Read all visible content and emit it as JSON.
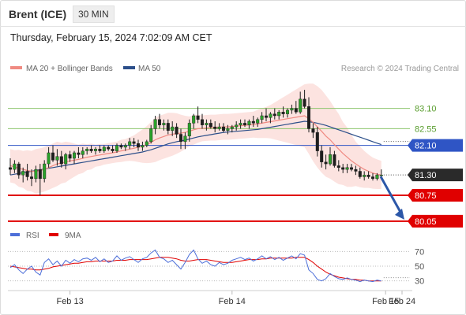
{
  "header": {
    "instrument": "Brent (ICE)",
    "timeframe": "30 MIN",
    "timestamp": "Thursday, February 15, 2024 7:02:09 AM CET"
  },
  "chart_data": {
    "type": "candlestick",
    "legend": [
      {
        "name": "MA 20 + Bollinger Bands",
        "color": "#f08a82"
      },
      {
        "name": "MA 50",
        "color": "#2c4f8a"
      }
    ],
    "credit": "Research © 2024 Trading Central",
    "price_axis": {
      "min": 79.75,
      "max": 83.9
    },
    "levels": [
      {
        "value": 83.1,
        "label": "83.10",
        "kind": "resistance",
        "color": "#8cc56b",
        "label_color": "#5a9e2f"
      },
      {
        "value": 82.55,
        "label": "82.55",
        "kind": "resistance",
        "color": "#8cc56b",
        "label_color": "#5a9e2f"
      },
      {
        "value": 82.1,
        "label": "82.10",
        "kind": "pivot",
        "color": "#2f55c5",
        "label_color": "#ffffff"
      },
      {
        "value": 81.3,
        "label": "81.30",
        "kind": "last",
        "color": "#2a2a2a",
        "label_color": "#ffffff"
      },
      {
        "value": 80.75,
        "label": "80.75",
        "kind": "support",
        "color": "#e00000",
        "label_color": "#ffffff"
      },
      {
        "value": 80.05,
        "label": "80.05",
        "kind": "support",
        "color": "#e00000",
        "label_color": "#ffffff"
      }
    ],
    "arrow": {
      "from": 81.3,
      "to": 80.05,
      "direction": "down",
      "color": "#2c57a8"
    },
    "candles": [
      [
        81.5,
        81.75,
        81.3,
        81.45
      ],
      [
        81.45,
        81.7,
        81.35,
        81.6
      ],
      [
        81.6,
        81.65,
        81.2,
        81.3
      ],
      [
        81.3,
        81.5,
        81.1,
        81.4
      ],
      [
        81.4,
        81.6,
        81.15,
        81.25
      ],
      [
        81.25,
        81.45,
        81.0,
        81.2
      ],
      [
        81.2,
        81.55,
        81.1,
        81.45
      ],
      [
        81.45,
        81.6,
        80.75,
        81.2
      ],
      [
        81.2,
        81.7,
        81.1,
        81.6
      ],
      [
        81.6,
        82.05,
        81.5,
        81.9
      ],
      [
        81.9,
        82.1,
        81.65,
        81.7
      ],
      [
        81.7,
        82.0,
        81.55,
        81.8
      ],
      [
        81.8,
        81.95,
        81.5,
        81.6
      ],
      [
        81.6,
        81.9,
        81.45,
        81.85
      ],
      [
        81.85,
        81.95,
        81.65,
        81.75
      ],
      [
        81.75,
        81.95,
        81.6,
        81.9
      ],
      [
        81.9,
        82.05,
        81.75,
        81.85
      ],
      [
        81.85,
        82.05,
        81.75,
        81.95
      ],
      [
        81.95,
        82.05,
        81.85,
        82.0
      ],
      [
        82.0,
        82.1,
        81.9,
        81.95
      ],
      [
        81.95,
        82.05,
        81.85,
        82.0
      ],
      [
        82.0,
        82.1,
        81.9,
        81.95
      ],
      [
        81.95,
        82.1,
        81.9,
        82.05
      ],
      [
        82.05,
        82.1,
        81.95,
        82.0
      ],
      [
        82.0,
        82.1,
        81.9,
        81.95
      ],
      [
        81.95,
        82.15,
        81.9,
        82.1
      ],
      [
        82.1,
        82.15,
        82.0,
        82.05
      ],
      [
        82.05,
        82.15,
        81.95,
        82.1
      ],
      [
        82.1,
        82.3,
        82.0,
        82.2
      ],
      [
        82.2,
        82.3,
        82.05,
        82.15
      ],
      [
        82.15,
        82.25,
        81.95,
        82.05
      ],
      [
        82.05,
        82.2,
        81.95,
        82.1
      ],
      [
        82.1,
        82.25,
        82.05,
        82.2
      ],
      [
        82.2,
        82.65,
        82.15,
        82.55
      ],
      [
        82.55,
        82.9,
        82.4,
        82.8
      ],
      [
        82.8,
        82.95,
        82.55,
        82.65
      ],
      [
        82.65,
        82.8,
        82.5,
        82.7
      ],
      [
        82.7,
        82.8,
        82.4,
        82.5
      ],
      [
        82.5,
        82.75,
        82.35,
        82.6
      ],
      [
        82.6,
        82.7,
        82.3,
        82.4
      ],
      [
        82.4,
        82.55,
        82.0,
        82.2
      ],
      [
        82.2,
        82.45,
        82.0,
        82.35
      ],
      [
        82.35,
        82.8,
        82.2,
        82.7
      ],
      [
        82.7,
        82.95,
        82.55,
        82.9
      ],
      [
        82.9,
        83.15,
        82.7,
        82.8
      ],
      [
        82.8,
        82.95,
        82.55,
        82.65
      ],
      [
        82.65,
        82.8,
        82.5,
        82.7
      ],
      [
        82.7,
        82.8,
        82.55,
        82.6
      ],
      [
        82.6,
        82.75,
        82.45,
        82.55
      ],
      [
        82.55,
        82.7,
        82.5,
        82.6
      ],
      [
        82.6,
        82.7,
        82.45,
        82.5
      ],
      [
        82.5,
        82.65,
        82.4,
        82.55
      ],
      [
        82.55,
        82.65,
        82.45,
        82.6
      ],
      [
        82.6,
        82.75,
        82.5,
        82.65
      ],
      [
        82.65,
        82.8,
        82.55,
        82.7
      ],
      [
        82.7,
        82.8,
        82.6,
        82.65
      ],
      [
        82.65,
        82.8,
        82.55,
        82.75
      ],
      [
        82.75,
        82.9,
        82.6,
        82.7
      ],
      [
        82.7,
        82.85,
        82.6,
        82.8
      ],
      [
        82.8,
        83.0,
        82.7,
        82.9
      ],
      [
        82.9,
        83.1,
        82.75,
        82.85
      ],
      [
        82.85,
        83.0,
        82.7,
        82.95
      ],
      [
        82.95,
        83.1,
        82.8,
        82.9
      ],
      [
        82.9,
        83.05,
        82.8,
        83.0
      ],
      [
        83.0,
        83.15,
        82.85,
        82.95
      ],
      [
        82.95,
        83.1,
        82.85,
        83.05
      ],
      [
        83.05,
        83.2,
        82.95,
        83.1
      ],
      [
        83.1,
        83.3,
        82.95,
        83.0
      ],
      [
        83.0,
        83.55,
        82.95,
        83.35
      ],
      [
        83.35,
        83.6,
        83.1,
        83.15
      ],
      [
        83.15,
        83.4,
        82.45,
        82.55
      ],
      [
        82.55,
        82.7,
        82.3,
        82.45
      ],
      [
        82.45,
        82.6,
        81.8,
        81.95
      ],
      [
        81.95,
        82.1,
        81.5,
        81.65
      ],
      [
        81.65,
        81.85,
        81.45,
        81.6
      ],
      [
        81.6,
        82.05,
        81.55,
        81.85
      ],
      [
        81.85,
        81.95,
        81.5,
        81.55
      ],
      [
        81.55,
        81.7,
        81.4,
        81.5
      ],
      [
        81.5,
        81.6,
        81.35,
        81.45
      ],
      [
        81.45,
        81.6,
        81.35,
        81.5
      ],
      [
        81.5,
        81.6,
        81.4,
        81.45
      ],
      [
        81.45,
        81.55,
        81.3,
        81.4
      ],
      [
        81.4,
        81.5,
        81.2,
        81.25
      ],
      [
        81.25,
        81.4,
        81.15,
        81.3
      ],
      [
        81.3,
        81.4,
        81.2,
        81.25
      ],
      [
        81.25,
        81.35,
        81.15,
        81.2
      ],
      [
        81.2,
        81.35,
        81.15,
        81.3
      ],
      [
        81.3,
        81.45,
        81.25,
        81.3
      ]
    ],
    "ma20": [
      81.55,
      81.52,
      81.48,
      81.45,
      81.42,
      81.4,
      81.4,
      81.42,
      81.45,
      81.5,
      81.55,
      81.6,
      81.62,
      81.65,
      81.68,
      81.7,
      81.72,
      81.75,
      81.78,
      81.8,
      81.82,
      81.84,
      81.86,
      81.88,
      81.9,
      81.92,
      81.95,
      81.97,
      82.0,
      82.02,
      82.05,
      82.08,
      82.12,
      82.18,
      82.25,
      82.3,
      82.34,
      82.38,
      82.4,
      82.42,
      82.43,
      82.45,
      82.48,
      82.52,
      82.55,
      82.56,
      82.57,
      82.58,
      82.58,
      82.59,
      82.6,
      82.6,
      82.61,
      82.62,
      82.63,
      82.64,
      82.65,
      82.66,
      82.68,
      82.7,
      82.72,
      82.74,
      82.76,
      82.78,
      82.8,
      82.82,
      82.84,
      82.86,
      82.88,
      82.9,
      82.82,
      82.72,
      82.6,
      82.48,
      82.35,
      82.25,
      82.12,
      82.0,
      81.88,
      81.78,
      81.68,
      81.6,
      81.52,
      81.45,
      81.4,
      81.35,
      81.32,
      81.3
    ],
    "ma50": [
      81.3,
      81.32,
      81.34,
      81.36,
      81.38,
      81.4,
      81.42,
      81.44,
      81.46,
      81.48,
      81.5,
      81.52,
      81.54,
      81.56,
      81.58,
      81.6,
      81.62,
      81.64,
      81.66,
      81.68,
      81.7,
      81.72,
      81.74,
      81.76,
      81.78,
      81.8,
      81.82,
      81.84,
      81.86,
      81.88,
      81.9,
      81.92,
      81.95,
      81.98,
      82.02,
      82.06,
      82.1,
      82.14,
      82.17,
      82.2,
      82.22,
      82.24,
      82.27,
      82.3,
      82.33,
      82.35,
      82.37,
      82.39,
      82.41,
      82.43,
      82.45,
      82.46,
      82.47,
      82.48,
      82.49,
      82.5,
      82.51,
      82.52,
      82.53,
      82.55,
      82.57,
      82.59,
      82.61,
      82.63,
      82.65,
      82.67,
      82.69,
      82.71,
      82.73,
      82.75,
      82.74,
      82.72,
      82.7,
      82.67,
      82.64,
      82.6,
      82.56,
      82.52,
      82.48,
      82.44,
      82.4,
      82.36,
      82.32,
      82.28,
      82.24,
      82.2,
      82.16,
      82.12
    ],
    "bb_width": [
      0.45,
      0.45,
      0.5,
      0.5,
      0.55,
      0.55,
      0.6,
      0.6,
      0.6,
      0.6,
      0.6,
      0.6,
      0.55,
      0.55,
      0.5,
      0.45,
      0.4,
      0.4,
      0.35,
      0.35,
      0.3,
      0.3,
      0.28,
      0.28,
      0.28,
      0.28,
      0.3,
      0.3,
      0.32,
      0.35,
      0.4,
      0.45,
      0.5,
      0.55,
      0.6,
      0.6,
      0.6,
      0.6,
      0.58,
      0.55,
      0.5,
      0.45,
      0.4,
      0.4,
      0.38,
      0.35,
      0.35,
      0.35,
      0.35,
      0.35,
      0.35,
      0.35,
      0.35,
      0.35,
      0.35,
      0.35,
      0.35,
      0.35,
      0.38,
      0.4,
      0.42,
      0.45,
      0.5,
      0.55,
      0.6,
      0.65,
      0.7,
      0.75,
      0.8,
      0.85,
      0.95,
      1.05,
      1.1,
      1.12,
      1.1,
      1.05,
      1.0,
      0.95,
      0.85,
      0.8,
      0.7,
      0.6,
      0.55,
      0.5,
      0.45,
      0.42,
      0.4,
      0.38
    ],
    "x_axis": {
      "ticks": [
        {
          "label": "Feb 13",
          "index": 14
        },
        {
          "label": "Feb 14",
          "index": 52
        },
        {
          "label": "Feb 15",
          "index": 88
        },
        {
          "label": "Feb 24",
          "index": 99
        }
      ]
    },
    "rsi": {
      "legend": [
        {
          "name": "RSI",
          "color": "#4d6fd9"
        },
        {
          "name": "9MA",
          "color": "#e00000"
        }
      ],
      "levels": [
        70,
        50,
        30
      ],
      "range": [
        20,
        80
      ],
      "values": [
        48,
        52,
        45,
        40,
        46,
        50,
        42,
        38,
        55,
        60,
        52,
        57,
        50,
        58,
        54,
        59,
        56,
        60,
        61,
        58,
        62,
        56,
        60,
        55,
        57,
        64,
        58,
        61,
        63,
        59,
        55,
        60,
        62,
        68,
        72,
        62,
        60,
        55,
        58,
        52,
        46,
        55,
        66,
        72,
        60,
        54,
        57,
        52,
        50,
        55,
        52,
        54,
        58,
        60,
        62,
        59,
        61,
        57,
        60,
        64,
        60,
        63,
        59,
        62,
        58,
        61,
        64,
        60,
        67,
        65,
        45,
        40,
        32,
        30,
        33,
        40,
        36,
        33,
        32,
        34,
        32,
        31,
        29,
        31,
        30,
        29,
        31,
        30
      ],
      "ma": [
        50,
        49,
        48,
        47,
        46,
        46,
        45,
        45,
        46,
        47,
        49,
        50,
        51,
        52,
        53,
        54,
        54,
        55,
        56,
        56,
        57,
        57,
        57,
        57,
        57,
        58,
        58,
        58,
        59,
        59,
        59,
        59,
        59,
        60,
        61,
        62,
        62,
        62,
        61,
        60,
        58,
        57,
        57,
        58,
        59,
        59,
        59,
        58,
        57,
        56,
        55,
        55,
        55,
        56,
        57,
        58,
        59,
        59,
        59,
        60,
        60,
        61,
        61,
        61,
        61,
        61,
        61,
        62,
        62,
        62,
        59,
        55,
        50,
        46,
        42,
        39,
        37,
        35,
        34,
        33,
        32,
        32,
        31,
        31,
        30,
        30,
        30,
        30
      ]
    }
  }
}
